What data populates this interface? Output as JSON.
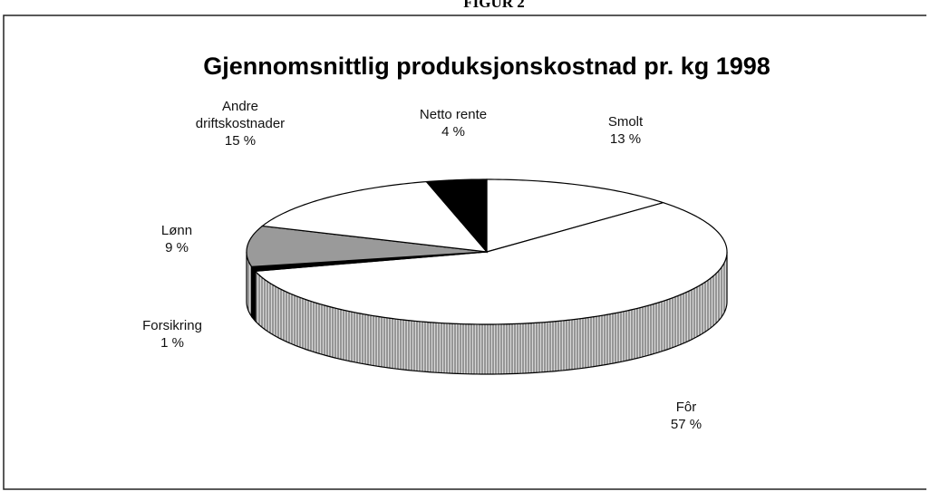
{
  "header": "FIGUR 2",
  "chart_data": {
    "type": "pie3d",
    "title": "Gjennomsnittlig produksjonskostnad pr. kg 1998",
    "categories": [
      "Smolt",
      "Fôr",
      "Forsikring",
      "Lønn",
      "Andre driftskostnader",
      "Netto rente"
    ],
    "values": [
      13,
      57,
      1,
      9,
      15,
      4
    ],
    "value_labels": [
      "13 %",
      "57 %",
      "1 %",
      "9 %",
      "15 %",
      "4 %"
    ],
    "colors": [
      "#ffffff",
      "#ffffff",
      "#000000",
      "#9a9a9a",
      "#ffffff",
      "#000000"
    ]
  }
}
